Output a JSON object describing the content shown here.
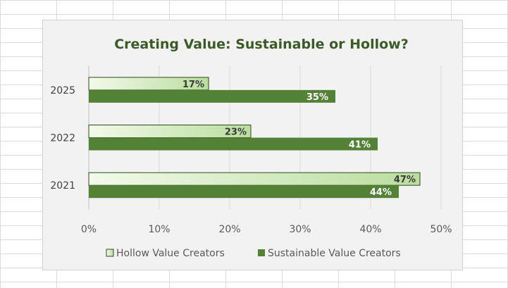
{
  "chart_data": {
    "type": "bar",
    "orientation": "horizontal",
    "title": "Creating Value: Sustainable or Hollow?",
    "categories": [
      "2025",
      "2022",
      "2021"
    ],
    "series": [
      {
        "name": "Hollow Value Creators",
        "values": [
          17,
          23,
          47
        ],
        "labels": [
          "17%",
          "23%",
          "47%"
        ]
      },
      {
        "name": "Sustainable Value Creators",
        "values": [
          35,
          41,
          44
        ],
        "labels": [
          "35%",
          "41%",
          "44%"
        ]
      }
    ],
    "x_ticks": [
      "0%",
      "10%",
      "20%",
      "30%",
      "40%",
      "50%"
    ],
    "xlim": [
      0,
      50
    ],
    "grid": true,
    "legend_position": "bottom",
    "colors": {
      "hollow_fill_start": "#f2faea",
      "hollow_fill_end": "#b9dd9e",
      "hollow_border": "#2e4a1c",
      "sustainable": "#538135",
      "title": "#3a5a26"
    }
  }
}
